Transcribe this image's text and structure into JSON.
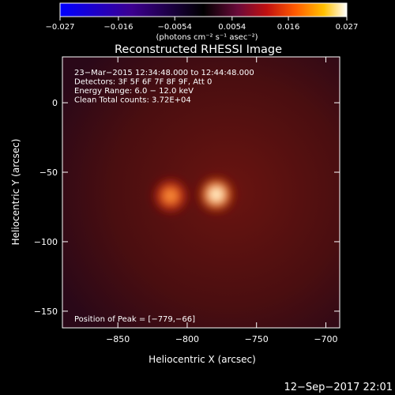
{
  "chart_data": {
    "type": "heatmap",
    "title": "Reconstructed RHESSI Image",
    "xlabel": "Heliocentric X (arcsec)",
    "ylabel": "Heliocentric Y (arcsec)",
    "xlim": [
      -890,
      -690
    ],
    "ylim": [
      -162,
      33
    ],
    "x_ticks": [
      -850,
      -800,
      -750,
      -700
    ],
    "x_tick_labels": [
      "−850",
      "−800",
      "−750",
      "−700"
    ],
    "y_ticks": [
      0,
      -50,
      -100,
      -150
    ],
    "y_tick_labels": [
      "0",
      "−50",
      "−100",
      "−150"
    ],
    "colorbar": {
      "min": -0.027,
      "max": 0.027,
      "ticks": [
        -0.027,
        -0.016,
        -0.0054,
        0.0054,
        0.016,
        0.027
      ],
      "tick_labels": [
        "−0.027",
        "−0.016",
        "−0.0054",
        "0.0054",
        "0.016",
        "0.027"
      ],
      "unit": "(photons cm⁻² s⁻¹ asec⁻²)",
      "colormap": "RHESSI blue-black-red-yellow-white"
    },
    "annotations": [
      "23−Mar−2015 12:34:48.000 to 12:44:48.000",
      "Detectors: 3F 5F 6F 7F 8F 9F, Att 0",
      "Energy Range: 6.0 − 12.0 keV",
      "Clean    Total counts: 3.72E+04"
    ],
    "peak_label": "Position of Peak = [−779,−66]",
    "sources": [
      {
        "x": -779,
        "y": -66,
        "intensity": 1.0
      },
      {
        "x": -812,
        "y": -67,
        "intensity": 0.72
      }
    ],
    "background_level": 0.12
  },
  "footer": {
    "timestamp": "12−Sep−2017 22:01"
  },
  "colors": {
    "background": "#000000",
    "text": "#ffffff"
  }
}
